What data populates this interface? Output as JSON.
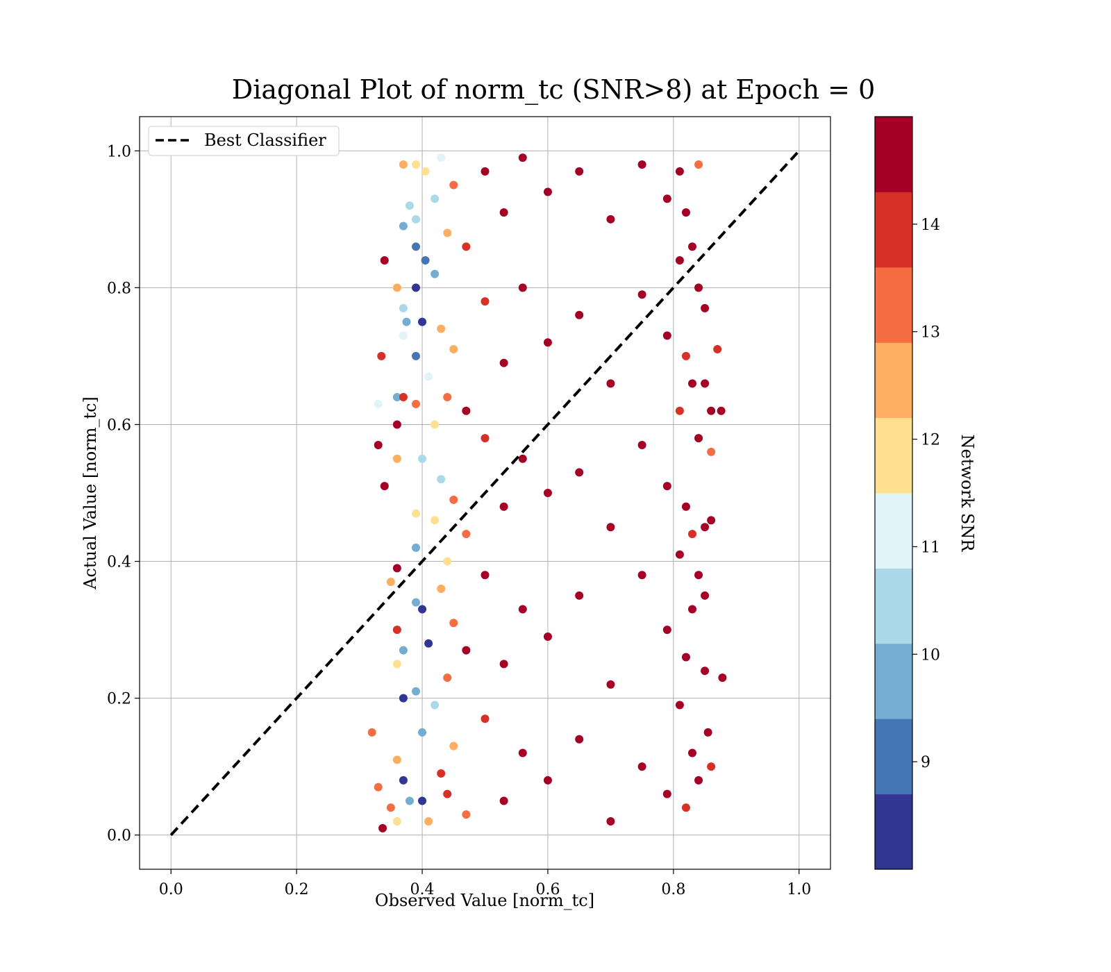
{
  "chart_data": {
    "type": "scatter",
    "title": "Diagonal Plot of norm_tc (SNR>8) at Epoch = 0",
    "xlabel": "Observed Value [norm_tc]",
    "ylabel": "Actual Value [norm_tc]",
    "xlim": [
      -0.05,
      1.05
    ],
    "ylim": [
      -0.05,
      1.05
    ],
    "xticks": [
      "0.0",
      "0.2",
      "0.4",
      "0.6",
      "0.8",
      "1.0"
    ],
    "xtick_values": [
      0.0,
      0.2,
      0.4,
      0.6,
      0.8,
      1.0
    ],
    "yticks": [
      "0.0",
      "0.2",
      "0.4",
      "0.6",
      "0.8",
      "1.0"
    ],
    "ytick_values": [
      0.0,
      0.2,
      0.4,
      0.6,
      0.8,
      1.0
    ],
    "grid": true,
    "legend": {
      "placement": "upper-left",
      "entries": [
        "Best Classifier"
      ]
    },
    "series": [
      {
        "name": "Best Classifier",
        "type": "line",
        "style": "dashed",
        "color": "#000000",
        "x": [
          0.0,
          1.0
        ],
        "y": [
          0.0,
          1.0
        ]
      },
      {
        "type": "scatter",
        "color_variable": "Network SNR",
        "description_x_range": [
          0.32,
          0.88
        ],
        "points": [
          [
            0.34,
            0.84,
            14.6
          ],
          [
            0.335,
            0.7,
            14.2
          ],
          [
            0.33,
            0.57,
            14.8
          ],
          [
            0.34,
            0.51,
            14.6
          ],
          [
            0.32,
            0.15,
            13.5
          ],
          [
            0.337,
            0.01,
            14.5
          ],
          [
            0.37,
            0.98,
            12.6
          ],
          [
            0.37,
            0.89,
            9.8
          ],
          [
            0.38,
            0.92,
            10.2
          ],
          [
            0.36,
            0.8,
            12.5
          ],
          [
            0.37,
            0.77,
            10.5
          ],
          [
            0.375,
            0.75,
            9.6
          ],
          [
            0.37,
            0.73,
            11.3
          ],
          [
            0.36,
            0.64,
            9.6
          ],
          [
            0.37,
            0.64,
            14.2
          ],
          [
            0.33,
            0.63,
            11.2
          ],
          [
            0.36,
            0.6,
            14.8
          ],
          [
            0.36,
            0.55,
            12.3
          ],
          [
            0.35,
            0.37,
            12.8
          ],
          [
            0.36,
            0.39,
            14.6
          ],
          [
            0.36,
            0.3,
            14.1
          ],
          [
            0.37,
            0.27,
            9.5
          ],
          [
            0.36,
            0.25,
            12.0
          ],
          [
            0.37,
            0.2,
            8.5
          ],
          [
            0.36,
            0.11,
            12.7
          ],
          [
            0.37,
            0.08,
            8.5
          ],
          [
            0.35,
            0.04,
            13.0
          ],
          [
            0.33,
            0.07,
            13.5
          ],
          [
            0.36,
            0.02,
            12.2
          ],
          [
            0.38,
            0.05,
            9.5
          ],
          [
            0.39,
            0.98,
            11.5
          ],
          [
            0.39,
            0.9,
            10.2
          ],
          [
            0.39,
            0.86,
            9.1
          ],
          [
            0.39,
            0.8,
            8.6
          ],
          [
            0.39,
            0.7,
            9.0
          ],
          [
            0.39,
            0.63,
            13.4
          ],
          [
            0.39,
            0.47,
            11.8
          ],
          [
            0.39,
            0.42,
            9.6
          ],
          [
            0.39,
            0.34,
            9.4
          ],
          [
            0.39,
            0.21,
            10.1
          ],
          [
            0.4,
            0.75,
            8.5
          ],
          [
            0.4,
            0.55,
            10.5
          ],
          [
            0.4,
            0.33,
            8.7
          ],
          [
            0.4,
            0.15,
            10.0
          ],
          [
            0.4,
            0.05,
            8.6
          ],
          [
            0.405,
            0.97,
            12.2
          ],
          [
            0.405,
            0.84,
            8.9
          ],
          [
            0.41,
            0.67,
            10.8
          ],
          [
            0.41,
            0.28,
            8.7
          ],
          [
            0.41,
            0.02,
            12.4
          ],
          [
            0.42,
            0.93,
            10.4
          ],
          [
            0.42,
            0.82,
            9.7
          ],
          [
            0.42,
            0.6,
            11.7
          ],
          [
            0.42,
            0.46,
            12.2
          ],
          [
            0.42,
            0.19,
            10.5
          ],
          [
            0.43,
            0.99,
            11.0
          ],
          [
            0.43,
            0.74,
            12.8
          ],
          [
            0.43,
            0.52,
            10.2
          ],
          [
            0.43,
            0.36,
            12.5
          ],
          [
            0.43,
            0.09,
            13.8
          ],
          [
            0.44,
            0.88,
            12.3
          ],
          [
            0.44,
            0.64,
            13.2
          ],
          [
            0.44,
            0.4,
            11.6
          ],
          [
            0.44,
            0.23,
            12.9
          ],
          [
            0.44,
            0.06,
            13.9
          ],
          [
            0.45,
            0.95,
            13.1
          ],
          [
            0.45,
            0.71,
            12.7
          ],
          [
            0.45,
            0.49,
            13.4
          ],
          [
            0.45,
            0.31,
            13.2
          ],
          [
            0.45,
            0.13,
            12.6
          ],
          [
            0.47,
            0.86,
            13.8
          ],
          [
            0.47,
            0.62,
            14.3
          ],
          [
            0.47,
            0.44,
            13.5
          ],
          [
            0.47,
            0.27,
            14.4
          ],
          [
            0.47,
            0.03,
            13.6
          ],
          [
            0.5,
            0.97,
            14.5
          ],
          [
            0.5,
            0.78,
            13.9
          ],
          [
            0.5,
            0.58,
            14.2
          ],
          [
            0.5,
            0.38,
            14.6
          ],
          [
            0.5,
            0.17,
            14.1
          ],
          [
            0.53,
            0.91,
            14.7
          ],
          [
            0.53,
            0.69,
            14.3
          ],
          [
            0.53,
            0.48,
            14.8
          ],
          [
            0.53,
            0.25,
            14.4
          ],
          [
            0.53,
            0.05,
            14.7
          ],
          [
            0.56,
            0.99,
            14.8
          ],
          [
            0.56,
            0.8,
            14.6
          ],
          [
            0.56,
            0.55,
            14.9
          ],
          [
            0.56,
            0.33,
            14.7
          ],
          [
            0.56,
            0.12,
            14.5
          ],
          [
            0.6,
            0.94,
            14.9
          ],
          [
            0.6,
            0.72,
            14.8
          ],
          [
            0.6,
            0.5,
            14.9
          ],
          [
            0.6,
            0.29,
            14.8
          ],
          [
            0.6,
            0.08,
            14.9
          ],
          [
            0.65,
            0.97,
            14.9
          ],
          [
            0.65,
            0.76,
            14.9
          ],
          [
            0.65,
            0.53,
            14.9
          ],
          [
            0.65,
            0.35,
            14.9
          ],
          [
            0.65,
            0.14,
            14.9
          ],
          [
            0.7,
            0.9,
            14.9
          ],
          [
            0.7,
            0.66,
            14.9
          ],
          [
            0.7,
            0.45,
            14.9
          ],
          [
            0.7,
            0.22,
            14.9
          ],
          [
            0.7,
            0.02,
            14.9
          ],
          [
            0.75,
            0.98,
            14.9
          ],
          [
            0.75,
            0.79,
            14.9
          ],
          [
            0.75,
            0.57,
            14.9
          ],
          [
            0.75,
            0.38,
            14.9
          ],
          [
            0.75,
            0.1,
            14.9
          ],
          [
            0.79,
            0.93,
            14.7
          ],
          [
            0.79,
            0.73,
            14.8
          ],
          [
            0.79,
            0.51,
            14.6
          ],
          [
            0.79,
            0.3,
            14.8
          ],
          [
            0.79,
            0.06,
            14.5
          ],
          [
            0.81,
            0.97,
            14.4
          ],
          [
            0.81,
            0.84,
            14.6
          ],
          [
            0.81,
            0.62,
            14.2
          ],
          [
            0.81,
            0.41,
            14.7
          ],
          [
            0.81,
            0.19,
            14.3
          ],
          [
            0.82,
            0.91,
            14.8
          ],
          [
            0.82,
            0.7,
            13.9
          ],
          [
            0.82,
            0.48,
            14.5
          ],
          [
            0.82,
            0.26,
            14.7
          ],
          [
            0.82,
            0.04,
            14.1
          ],
          [
            0.83,
            0.86,
            14.6
          ],
          [
            0.83,
            0.66,
            14.8
          ],
          [
            0.83,
            0.44,
            13.8
          ],
          [
            0.83,
            0.33,
            14.5
          ],
          [
            0.83,
            0.12,
            14.6
          ],
          [
            0.84,
            0.98,
            13.3
          ],
          [
            0.84,
            0.8,
            14.7
          ],
          [
            0.84,
            0.58,
            14.4
          ],
          [
            0.84,
            0.38,
            14.8
          ],
          [
            0.84,
            0.08,
            14.3
          ],
          [
            0.85,
            0.77,
            14.6
          ],
          [
            0.85,
            0.66,
            14.7
          ],
          [
            0.85,
            0.45,
            14.5
          ],
          [
            0.85,
            0.35,
            14.3
          ],
          [
            0.85,
            0.24,
            14.6
          ],
          [
            0.855,
            0.15,
            14.8
          ],
          [
            0.86,
            0.56,
            13.6
          ],
          [
            0.86,
            0.46,
            14.7
          ],
          [
            0.86,
            0.1,
            14.2
          ],
          [
            0.86,
            0.62,
            14.4
          ],
          [
            0.87,
            0.71,
            13.8
          ],
          [
            0.876,
            0.62,
            14.6
          ],
          [
            0.878,
            0.23,
            14.7
          ]
        ]
      }
    ],
    "colorbar": {
      "label": "Network SNR",
      "min": 8.0,
      "max": 15.0,
      "ticks": [
        "9",
        "10",
        "11",
        "12",
        "13",
        "14"
      ],
      "tick_values": [
        9,
        10,
        11,
        12,
        13,
        14
      ],
      "colors": [
        "#313695",
        "#4575b4",
        "#74add1",
        "#abd9e9",
        "#e0f3f8",
        "#fee090",
        "#fdae61",
        "#f46d43",
        "#d73027",
        "#a50026"
      ]
    }
  }
}
